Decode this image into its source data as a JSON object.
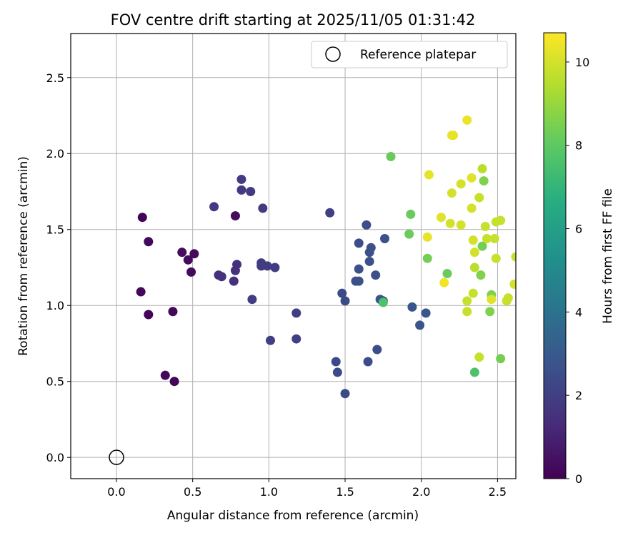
{
  "chart_data": {
    "type": "scatter",
    "title": "FOV centre drift starting at 2025/11/05 01:31:42",
    "xlabel": "Angular distance from reference (arcmin)",
    "ylabel": "Rotation from reference (arcmin)",
    "xlim": [
      -0.3,
      2.62
    ],
    "ylim": [
      -0.14,
      2.79
    ],
    "xticks": [
      0.0,
      0.5,
      1.0,
      1.5,
      2.0,
      2.5
    ],
    "yticks": [
      0.0,
      0.5,
      1.0,
      1.5,
      2.0,
      2.5
    ],
    "grid": true,
    "legend": {
      "position": "top-right",
      "entries": [
        "Reference platepar"
      ]
    },
    "reference_point": {
      "x": 0.0,
      "y": 0.0,
      "label": "Reference platepar"
    },
    "colorbar": {
      "label": "Hours from first FF file",
      "range": [
        0,
        10.7
      ],
      "ticks": [
        0,
        2,
        4,
        6,
        8,
        10
      ],
      "colormap": "viridis"
    },
    "points": [
      {
        "x": 0.17,
        "y": 1.58,
        "h": 0.1
      },
      {
        "x": 0.21,
        "y": 1.42,
        "h": 0.2
      },
      {
        "x": 0.43,
        "y": 1.35,
        "h": 0.3
      },
      {
        "x": 0.51,
        "y": 1.34,
        "h": 0.3
      },
      {
        "x": 0.47,
        "y": 1.3,
        "h": 0.3
      },
      {
        "x": 0.49,
        "y": 1.22,
        "h": 0.3
      },
      {
        "x": 0.16,
        "y": 1.09,
        "h": 0.2
      },
      {
        "x": 0.21,
        "y": 0.94,
        "h": 0.1
      },
      {
        "x": 0.37,
        "y": 0.96,
        "h": 0.2
      },
      {
        "x": 0.32,
        "y": 0.54,
        "h": 0.2
      },
      {
        "x": 0.38,
        "y": 0.5,
        "h": 0.1
      },
      {
        "x": 0.78,
        "y": 1.59,
        "h": 0.3
      },
      {
        "x": 0.64,
        "y": 1.65,
        "h": 1.8
      },
      {
        "x": 0.82,
        "y": 1.83,
        "h": 1.8
      },
      {
        "x": 0.82,
        "y": 1.76,
        "h": 1.8
      },
      {
        "x": 0.88,
        "y": 1.75,
        "h": 1.8
      },
      {
        "x": 0.96,
        "y": 1.64,
        "h": 1.8
      },
      {
        "x": 0.67,
        "y": 1.2,
        "h": 1.5
      },
      {
        "x": 0.69,
        "y": 1.19,
        "h": 1.5
      },
      {
        "x": 0.79,
        "y": 1.27,
        "h": 1.5
      },
      {
        "x": 0.78,
        "y": 1.23,
        "h": 1.5
      },
      {
        "x": 0.77,
        "y": 1.16,
        "h": 1.4
      },
      {
        "x": 0.95,
        "y": 1.28,
        "h": 1.9
      },
      {
        "x": 0.95,
        "y": 1.26,
        "h": 1.9
      },
      {
        "x": 0.99,
        "y": 1.26,
        "h": 1.9
      },
      {
        "x": 1.04,
        "y": 1.25,
        "h": 1.9
      },
      {
        "x": 0.89,
        "y": 1.04,
        "h": 1.9
      },
      {
        "x": 1.18,
        "y": 0.95,
        "h": 2.0
      },
      {
        "x": 1.01,
        "y": 0.77,
        "h": 2.0
      },
      {
        "x": 1.18,
        "y": 0.78,
        "h": 2.0
      },
      {
        "x": 1.4,
        "y": 1.61,
        "h": 2.0
      },
      {
        "x": 1.64,
        "y": 1.53,
        "h": 2.5
      },
      {
        "x": 1.59,
        "y": 1.41,
        "h": 2.5
      },
      {
        "x": 1.67,
        "y": 1.38,
        "h": 2.6
      },
      {
        "x": 1.66,
        "y": 1.35,
        "h": 2.6
      },
      {
        "x": 1.76,
        "y": 1.44,
        "h": 2.6
      },
      {
        "x": 1.66,
        "y": 1.29,
        "h": 2.6
      },
      {
        "x": 1.59,
        "y": 1.24,
        "h": 2.6
      },
      {
        "x": 1.7,
        "y": 1.2,
        "h": 2.6
      },
      {
        "x": 1.57,
        "y": 1.16,
        "h": 2.6
      },
      {
        "x": 1.59,
        "y": 1.16,
        "h": 2.6
      },
      {
        "x": 1.48,
        "y": 1.08,
        "h": 2.4
      },
      {
        "x": 1.5,
        "y": 1.03,
        "h": 2.4
      },
      {
        "x": 1.73,
        "y": 1.04,
        "h": 2.8
      },
      {
        "x": 1.75,
        "y": 1.03,
        "h": 2.8
      },
      {
        "x": 1.94,
        "y": 0.99,
        "h": 2.8
      },
      {
        "x": 2.03,
        "y": 0.95,
        "h": 2.9
      },
      {
        "x": 1.99,
        "y": 0.87,
        "h": 2.8
      },
      {
        "x": 1.71,
        "y": 0.71,
        "h": 2.5
      },
      {
        "x": 1.65,
        "y": 0.63,
        "h": 2.5
      },
      {
        "x": 1.44,
        "y": 0.63,
        "h": 2.4
      },
      {
        "x": 1.45,
        "y": 0.56,
        "h": 2.4
      },
      {
        "x": 1.5,
        "y": 0.42,
        "h": 2.4
      },
      {
        "x": 1.75,
        "y": 1.02,
        "h": 7.6
      },
      {
        "x": 1.8,
        "y": 1.98,
        "h": 8.2
      },
      {
        "x": 1.93,
        "y": 1.6,
        "h": 8.2
      },
      {
        "x": 1.92,
        "y": 1.47,
        "h": 8.2
      },
      {
        "x": 2.04,
        "y": 1.31,
        "h": 8.4
      },
      {
        "x": 2.17,
        "y": 1.21,
        "h": 8.2
      },
      {
        "x": 2.35,
        "y": 0.56,
        "h": 7.6
      },
      {
        "x": 2.52,
        "y": 0.65,
        "h": 8.4
      },
      {
        "x": 2.41,
        "y": 1.82,
        "h": 8.6
      },
      {
        "x": 2.4,
        "y": 1.39,
        "h": 8.4
      },
      {
        "x": 2.39,
        "y": 1.2,
        "h": 8.6
      },
      {
        "x": 2.45,
        "y": 0.96,
        "h": 8.6
      },
      {
        "x": 2.46,
        "y": 1.07,
        "h": 8.6
      },
      {
        "x": 2.3,
        "y": 2.22,
        "h": 10.4
      },
      {
        "x": 2.2,
        "y": 2.12,
        "h": 10.3
      },
      {
        "x": 2.21,
        "y": 2.12,
        "h": 10.3
      },
      {
        "x": 2.05,
        "y": 1.86,
        "h": 10.3
      },
      {
        "x": 2.33,
        "y": 1.84,
        "h": 10.2
      },
      {
        "x": 2.26,
        "y": 1.8,
        "h": 10.0
      },
      {
        "x": 2.2,
        "y": 1.74,
        "h": 10.0
      },
      {
        "x": 2.4,
        "y": 1.9,
        "h": 9.6
      },
      {
        "x": 2.38,
        "y": 1.71,
        "h": 9.8
      },
      {
        "x": 2.13,
        "y": 1.58,
        "h": 10.2
      },
      {
        "x": 2.19,
        "y": 1.54,
        "h": 10.0
      },
      {
        "x": 2.26,
        "y": 1.53,
        "h": 10.0
      },
      {
        "x": 2.33,
        "y": 1.64,
        "h": 10.0
      },
      {
        "x": 2.42,
        "y": 1.52,
        "h": 9.8
      },
      {
        "x": 2.49,
        "y": 1.55,
        "h": 9.8
      },
      {
        "x": 2.52,
        "y": 1.56,
        "h": 9.8
      },
      {
        "x": 2.04,
        "y": 1.45,
        "h": 10.3
      },
      {
        "x": 2.34,
        "y": 1.43,
        "h": 10.0
      },
      {
        "x": 2.43,
        "y": 1.44,
        "h": 9.8
      },
      {
        "x": 2.48,
        "y": 1.44,
        "h": 9.8
      },
      {
        "x": 2.35,
        "y": 1.35,
        "h": 10.0
      },
      {
        "x": 2.49,
        "y": 1.31,
        "h": 9.8
      },
      {
        "x": 2.62,
        "y": 1.32,
        "h": 9.8
      },
      {
        "x": 2.35,
        "y": 1.25,
        "h": 9.6
      },
      {
        "x": 2.15,
        "y": 1.15,
        "h": 10.5
      },
      {
        "x": 2.61,
        "y": 1.14,
        "h": 10.0
      },
      {
        "x": 2.34,
        "y": 1.08,
        "h": 9.8
      },
      {
        "x": 2.3,
        "y": 1.03,
        "h": 9.8
      },
      {
        "x": 2.46,
        "y": 1.04,
        "h": 10.2
      },
      {
        "x": 2.56,
        "y": 1.03,
        "h": 9.8
      },
      {
        "x": 2.57,
        "y": 1.05,
        "h": 9.8
      },
      {
        "x": 2.3,
        "y": 0.96,
        "h": 9.8
      },
      {
        "x": 2.38,
        "y": 0.66,
        "h": 9.8
      }
    ]
  }
}
